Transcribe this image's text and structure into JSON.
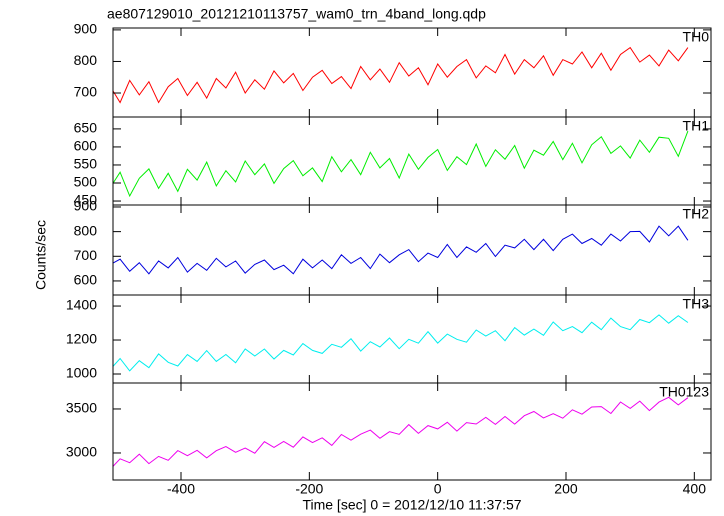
{
  "chart_data": {
    "type": "line",
    "title": "ae807129010_20121210113757_wam0_trn_4band_long.qdp",
    "x_label": "Time [sec] 0 = 2012/12/10 11:37:57",
    "y_label": "Counts/sec",
    "xlim": [
      -506,
      426
    ],
    "xticks": [
      -400,
      -200,
      0,
      200,
      400
    ],
    "x": [
      -510,
      -495,
      -480,
      -465,
      -450,
      -435,
      -420,
      -405,
      -390,
      -375,
      -360,
      -345,
      -330,
      -315,
      -300,
      -285,
      -270,
      -255,
      -240,
      -225,
      -210,
      -195,
      -180,
      -165,
      -150,
      -135,
      -120,
      -105,
      -90,
      -75,
      -60,
      -45,
      -30,
      -15,
      0,
      15,
      30,
      45,
      60,
      75,
      90,
      105,
      120,
      135,
      150,
      165,
      180,
      195,
      210,
      225,
      240,
      255,
      270,
      285,
      300,
      315,
      330,
      345,
      360,
      375,
      390
    ],
    "series": [
      {
        "name": "TH0",
        "color": "#ff0000",
        "ylim": [
          624,
          906
        ],
        "yticks": [
          700,
          800,
          900
        ],
        "values": [
          720,
          670,
          740,
          694,
          736,
          670,
          720,
          746,
          692,
          734,
          684,
          746,
          716,
          766,
          700,
          742,
          712,
          770,
          732,
          762,
          708,
          750,
          772,
          730,
          752,
          714,
          784,
          742,
          776,
          734,
          796,
          754,
          780,
          726,
          792,
          750,
          784,
          806,
          748,
          786,
          764,
          822,
          760,
          806,
          780,
          818,
          756,
          806,
          792,
          830,
          780,
          826,
          772,
          822,
          844,
          798,
          820,
          786,
          836,
          802,
          844
        ]
      },
      {
        "name": "TH1",
        "color": "#00ee00",
        "ylim": [
          439,
          683
        ],
        "yticks": [
          450,
          500,
          550,
          600,
          650
        ],
        "values": [
          488,
          530,
          464,
          513,
          539,
          485,
          527,
          477,
          538,
          508,
          558,
          492,
          534,
          503,
          561,
          523,
          553,
          499,
          540,
          562,
          520,
          542,
          504,
          573,
          531,
          565,
          523,
          585,
          542,
          568,
          514,
          580,
          538,
          571,
          593,
          535,
          573,
          551,
          608,
          546,
          592,
          566,
          604,
          541,
          591,
          577,
          615,
          565,
          610,
          556,
          606,
          628,
          582,
          603,
          569,
          619,
          585,
          627,
          624,
          574,
          644
        ]
      },
      {
        "name": "TH2",
        "color": "#0000dd",
        "ylim": [
          543,
          908
        ],
        "yticks": [
          600,
          700,
          800,
          900
        ],
        "values": [
          667,
          688,
          639,
          674,
          629,
          681,
          653,
          695,
          636,
          671,
          643,
          692,
          657,
          681,
          632,
          667,
          685,
          646,
          664,
          629,
          688,
          653,
          685,
          650,
          706,
          671,
          695,
          650,
          709,
          674,
          706,
          727,
          678,
          713,
          695,
          748,
          695,
          738,
          716,
          752,
          699,
          745,
          734,
          769,
          727,
          769,
          723,
          769,
          790,
          752,
          772,
          745,
          790,
          762,
          800,
          801,
          758,
          822,
          783,
          822,
          765
        ]
      },
      {
        "name": "TH3",
        "color": "#00eeee",
        "ylim": [
          947,
          1465
        ],
        "yticks": [
          1000,
          1200,
          1400
        ],
        "values": [
          1028,
          1091,
          1018,
          1078,
          1037,
          1118,
          1069,
          1047,
          1114,
          1074,
          1138,
          1074,
          1115,
          1066,
          1147,
          1106,
          1147,
          1088,
          1139,
          1112,
          1179,
          1139,
          1121,
          1175,
          1157,
          1208,
          1135,
          1190,
          1159,
          1212,
          1149,
          1204,
          1181,
          1249,
          1182,
          1235,
          1204,
          1187,
          1259,
          1223,
          1255,
          1196,
          1273,
          1229,
          1264,
          1228,
          1306,
          1255,
          1279,
          1243,
          1305,
          1261,
          1329,
          1279,
          1261,
          1321,
          1302,
          1348,
          1299,
          1343,
          1303
        ]
      },
      {
        "name": "TH0123",
        "color": "#ee00ee",
        "ylim": [
          2693,
          3795
        ],
        "yticks": [
          3000,
          3500
        ],
        "values": [
          2817,
          2934,
          2890,
          2986,
          2879,
          2961,
          2917,
          3027,
          2969,
          3030,
          2944,
          3026,
          3073,
          3008,
          3055,
          2997,
          3128,
          3063,
          3131,
          3066,
          3183,
          3118,
          3172,
          3086,
          3210,
          3145,
          3213,
          3260,
          3167,
          3242,
          3212,
          3322,
          3222,
          3311,
          3274,
          3349,
          3249,
          3345,
          3329,
          3404,
          3325,
          3414,
          3328,
          3424,
          3471,
          3399,
          3446,
          3395,
          3491,
          3440,
          3522,
          3527,
          3448,
          3579,
          3507,
          3589,
          3482,
          3578,
          3632,
          3546,
          3628
        ]
      }
    ]
  }
}
